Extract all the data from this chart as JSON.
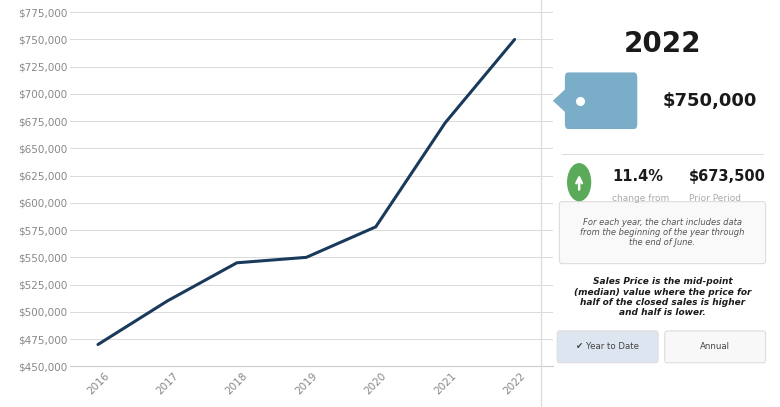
{
  "years": [
    2016,
    2017,
    2018,
    2019,
    2020,
    2021,
    2022
  ],
  "values": [
    470000,
    510000,
    545000,
    550000,
    578000,
    673500,
    750000
  ],
  "line_color": "#1a3a5c",
  "bg_color": "#ffffff",
  "chart_bg": "#ffffff",
  "axis_color": "#cccccc",
  "tick_label_color": "#888888",
  "ylim": [
    450000,
    775000
  ],
  "yticks": [
    450000,
    475000,
    500000,
    525000,
    550000,
    575000,
    600000,
    625000,
    650000,
    675000,
    700000,
    725000,
    750000,
    775000
  ],
  "year_label": "2022",
  "price_label": "$750,000",
  "change_pct": "11.4%",
  "prior_label": "$673,500",
  "tag_color": "#7aaec8",
  "tag_dot_color": "#ffffff",
  "arrow_color": "#5aaa5a",
  "note_text": "For each year, the chart includes data\nfrom the beginning of the year through\nthe end of June.",
  "desc_text": "Sales Price is the mid-point\n(median) value where the price for\nhalf of the closed sales is higher\nand half is lower.",
  "btn1_text": "✔ Year to Date",
  "btn2_text": "Annual",
  "btn1_bg": "#dde6f0",
  "btn2_bg": "#f8f8f8",
  "divider_color": "#dddddd",
  "panel_bg": "#ffffff",
  "line_width": 2.2,
  "change_from_label": "change from",
  "prior_period_label": "Prior Period"
}
